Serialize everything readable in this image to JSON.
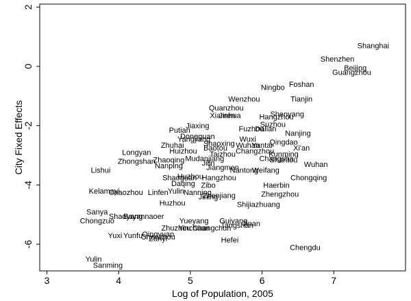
{
  "chart_data": {
    "type": "scatter",
    "title": "",
    "xlabel": "Log of Population, 2005",
    "ylabel": "City Fixed Effects",
    "xlim": [
      2.9,
      8.0
    ],
    "ylim": [
      -6.9,
      2.1
    ],
    "xticks": [
      3,
      4,
      5,
      6,
      7
    ],
    "yticks": [
      -6,
      -4,
      -2,
      0,
      2
    ],
    "grid": false,
    "points": [
      {
        "label": "Shanghai",
        "x": 7.55,
        "y": 0.7
      },
      {
        "label": "Shenzhen",
        "x": 7.05,
        "y": 0.25
      },
      {
        "label": "Beijing",
        "x": 7.3,
        "y": -0.05
      },
      {
        "label": "Guangzhou",
        "x": 7.25,
        "y": -0.2
      },
      {
        "label": "Foshan",
        "x": 6.55,
        "y": -0.6
      },
      {
        "label": "Ningbo",
        "x": 6.15,
        "y": -0.7
      },
      {
        "label": "Tianjin",
        "x": 6.55,
        "y": -1.1
      },
      {
        "label": "Wenzhou",
        "x": 5.75,
        "y": -1.1
      },
      {
        "label": "Quanzhou",
        "x": 5.5,
        "y": -1.4
      },
      {
        "label": "Xiamen",
        "x": 5.45,
        "y": -1.65
      },
      {
        "label": "Jinhua",
        "x": 5.55,
        "y": -1.65
      },
      {
        "label": "Shenyang",
        "x": 6.35,
        "y": -1.6
      },
      {
        "label": "Hangzhou",
        "x": 6.2,
        "y": -1.7
      },
      {
        "label": "Suzhou",
        "x": 6.15,
        "y": -1.95
      },
      {
        "label": "Jiaxing",
        "x": 5.1,
        "y": -2.0
      },
      {
        "label": "Fuzhou",
        "x": 5.85,
        "y": -2.1
      },
      {
        "label": "Dalian",
        "x": 6.05,
        "y": -2.1
      },
      {
        "label": "Nanjing",
        "x": 6.5,
        "y": -2.25
      },
      {
        "label": "Putian",
        "x": 4.85,
        "y": -2.15
      },
      {
        "label": "Dongguan",
        "x": 5.1,
        "y": -2.35
      },
      {
        "label": "Yangjiang",
        "x": 5.05,
        "y": -2.45
      },
      {
        "label": "Wuxi",
        "x": 5.8,
        "y": -2.45
      },
      {
        "label": "Qingdao",
        "x": 6.3,
        "y": -2.55
      },
      {
        "label": "Shaoxing",
        "x": 5.4,
        "y": -2.6
      },
      {
        "label": "Wuhan",
        "x": 5.8,
        "y": -2.65
      },
      {
        "label": "Yantai",
        "x": 6.0,
        "y": -2.65
      },
      {
        "label": "Zhuhai",
        "x": 4.75,
        "y": -2.65
      },
      {
        "label": "Baotou",
        "x": 5.35,
        "y": -2.75
      },
      {
        "label": "Xi'an",
        "x": 6.55,
        "y": -2.75
      },
      {
        "label": "Huizhou",
        "x": 4.9,
        "y": -2.85
      },
      {
        "label": "Changzhou",
        "x": 5.9,
        "y": -2.85
      },
      {
        "label": "Longyan",
        "x": 4.25,
        "y": -2.9
      },
      {
        "label": "Taizhou",
        "x": 5.45,
        "y": -2.95
      },
      {
        "label": "Kunming",
        "x": 6.3,
        "y": -2.95
      },
      {
        "label": "Changsha",
        "x": 6.2,
        "y": -3.1
      },
      {
        "label": "Zhongshan",
        "x": 4.25,
        "y": -3.2
      },
      {
        "label": "Zhaoqing",
        "x": 4.7,
        "y": -3.15
      },
      {
        "label": "Mudanjiang",
        "x": 5.2,
        "y": -3.1
      },
      {
        "label": "Shantou",
        "x": 6.3,
        "y": -3.15
      },
      {
        "label": "Wuhan",
        "x": 6.75,
        "y": -3.3
      },
      {
        "label": "Nanping",
        "x": 4.7,
        "y": -3.35
      },
      {
        "label": "Jilin",
        "x": 5.25,
        "y": -3.25
      },
      {
        "label": "Jiangmen",
        "x": 5.45,
        "y": -3.4
      },
      {
        "label": "Lishui",
        "x": 3.75,
        "y": -3.5
      },
      {
        "label": "Nantong",
        "x": 5.75,
        "y": -3.5
      },
      {
        "label": "Weifang",
        "x": 6.05,
        "y": -3.5
      },
      {
        "label": "Shaoguan",
        "x": 4.85,
        "y": -3.75
      },
      {
        "label": "Huzhou",
        "x": 5.0,
        "y": -3.7
      },
      {
        "label": "Hangzhou",
        "x": 5.4,
        "y": -3.75
      },
      {
        "label": "Chongqing",
        "x": 6.65,
        "y": -3.75
      },
      {
        "label": "Daqing",
        "x": 4.9,
        "y": -3.95
      },
      {
        "label": "Zibo",
        "x": 5.25,
        "y": -4.0
      },
      {
        "label": "Haerbin",
        "x": 6.2,
        "y": -4.0
      },
      {
        "label": "Kelamayi",
        "x": 3.8,
        "y": -4.2
      },
      {
        "label": "Chaozhou",
        "x": 4.1,
        "y": -4.25
      },
      {
        "label": "Linfen",
        "x": 4.55,
        "y": -4.25
      },
      {
        "label": "Yulin",
        "x": 4.8,
        "y": -4.2
      },
      {
        "label": "Nanning",
        "x": 5.1,
        "y": -4.25
      },
      {
        "label": "Zhenjiang",
        "x": 5.4,
        "y": -4.35
      },
      {
        "label": "Jining",
        "x": 5.25,
        "y": -4.4
      },
      {
        "label": "Zhengzhou",
        "x": 6.25,
        "y": -4.3
      },
      {
        "label": "Huzhou",
        "x": 4.75,
        "y": -4.6
      },
      {
        "label": "Shijiazhuang",
        "x": 5.95,
        "y": -4.65
      },
      {
        "label": "Sanya",
        "x": 3.7,
        "y": -4.9
      },
      {
        "label": "Shaoyang",
        "x": 4.1,
        "y": -5.05
      },
      {
        "label": "Bayannaoer",
        "x": 4.35,
        "y": -5.05
      },
      {
        "label": "Chongzuo",
        "x": 3.7,
        "y": -5.2
      },
      {
        "label": "Yueyang",
        "x": 5.05,
        "y": -5.2
      },
      {
        "label": "Guiyang",
        "x": 5.6,
        "y": -5.2
      },
      {
        "label": "Jinan",
        "x": 5.85,
        "y": -5.3
      },
      {
        "label": "Tangshan",
        "x": 5.65,
        "y": -5.35
      },
      {
        "label": "Zhuzhou",
        "x": 4.8,
        "y": -5.45
      },
      {
        "label": "Yinchuan",
        "x": 5.05,
        "y": -5.45
      },
      {
        "label": "Changchun",
        "x": 5.3,
        "y": -5.45
      },
      {
        "label": "Yuxi",
        "x": 3.95,
        "y": -5.7
      },
      {
        "label": "Yunfu",
        "x": 4.2,
        "y": -5.7
      },
      {
        "label": "Qingyuan",
        "x": 4.55,
        "y": -5.65
      },
      {
        "label": "Chenzhou",
        "x": 4.55,
        "y": -5.75
      },
      {
        "label": "Zunyi",
        "x": 4.55,
        "y": -5.8
      },
      {
        "label": "Hefei",
        "x": 5.55,
        "y": -5.85
      },
      {
        "label": "Chengdu",
        "x": 6.6,
        "y": -6.1
      },
      {
        "label": "Yulin",
        "x": 3.65,
        "y": -6.5
      },
      {
        "label": "Sanming",
        "x": 3.85,
        "y": -6.7
      }
    ]
  }
}
